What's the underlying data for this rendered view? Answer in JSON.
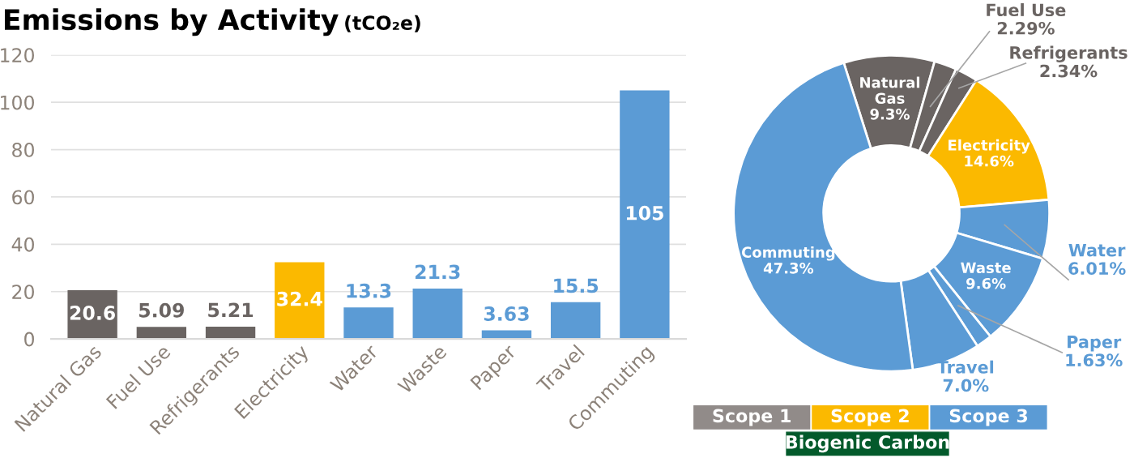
{
  "chart_data": [
    {
      "type": "bar",
      "title": "Emissions by Activity",
      "subtitle": "(tCO₂e)",
      "categories": [
        "Natural Gas",
        "Fuel Use",
        "Refrigerants",
        "Electricity",
        "Water",
        "Waste",
        "Paper",
        "Travel",
        "Commuting"
      ],
      "values": [
        20.6,
        5.09,
        5.21,
        32.4,
        13.3,
        21.3,
        3.63,
        15.5,
        105
      ],
      "colors": [
        "#6a6462",
        "#6a6462",
        "#6a6462",
        "#fbb900",
        "#5b9bd5",
        "#5b9bd5",
        "#5b9bd5",
        "#5b9bd5",
        "#5b9bd5"
      ],
      "ylim": [
        0,
        120
      ],
      "yticks": [
        0,
        20,
        40,
        60,
        80,
        100,
        120
      ],
      "grid": "y",
      "data_labels": true
    },
    {
      "type": "donut",
      "categories": [
        "Natural Gas",
        "Fuel Use",
        "Refrigerants",
        "Electricity",
        "Water",
        "Waste",
        "Paper",
        "Travel",
        "Commuting"
      ],
      "values": [
        9.3,
        2.29,
        2.34,
        14.6,
        6.01,
        9.6,
        1.63,
        7.0,
        47.3
      ],
      "colors": [
        "#6a6462",
        "#6a6462",
        "#6a6462",
        "#fbb900",
        "#5b9bd5",
        "#5b9bd5",
        "#5b9bd5",
        "#5b9bd5",
        "#5b9bd5"
      ],
      "value_labels": [
        "9.3%",
        "2.29%",
        "2.34%",
        "14.6%",
        "6.01%",
        "9.6%",
        "1.63%",
        "7.0%",
        "47.3%"
      ]
    },
    {
      "type": "other",
      "categories": [
        "Scope 1",
        "Scope 2",
        "Scope 3",
        "Biogenic Carbon"
      ],
      "colors": [
        "#918b89",
        "#fbb900",
        "#5b9bd5",
        "#035a2b"
      ]
    }
  ]
}
